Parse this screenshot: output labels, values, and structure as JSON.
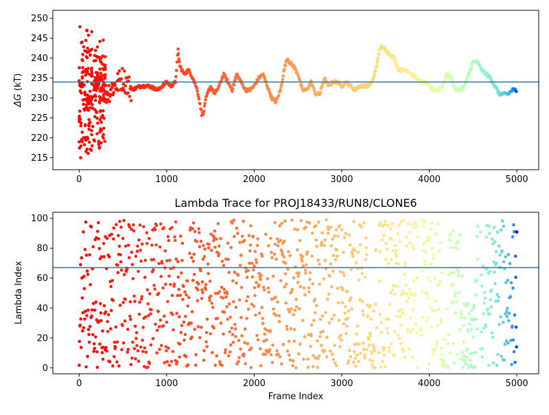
{
  "chart_data": [
    {
      "type": "scatter",
      "title": "",
      "xlabel": "",
      "ylabel": "ΔG (kT)",
      "ylabel_symbol": "ΔG",
      "ylabel_unit": " (kT)",
      "xlim": [
        -300,
        5250
      ],
      "ylim": [
        212,
        252
      ],
      "xticks": [
        0,
        1000,
        2000,
        3000,
        4000,
        5000
      ],
      "yticks": [
        215,
        220,
        225,
        230,
        235,
        240,
        245,
        250
      ],
      "hline": 234,
      "hline_color": "#1f77b4",
      "colormap": "rainbow (frame index high → violet, low → red)",
      "grid": false,
      "series": [
        {
          "points_per_segment": 40,
          "x": [
            0,
            50,
            100,
            150,
            200,
            250,
            300,
            400,
            500,
            600,
            700,
            800,
            900,
            1000,
            1050,
            1100,
            1130,
            1150,
            1200,
            1250,
            1300,
            1350,
            1400,
            1420,
            1450,
            1500,
            1550,
            1600,
            1650,
            1700,
            1750,
            1800,
            1850,
            1900,
            1950,
            2000,
            2050,
            2100,
            2150,
            2200,
            2250,
            2300,
            2350,
            2380,
            2400,
            2450,
            2500,
            2550,
            2600,
            2650,
            2700,
            2750,
            2800,
            2850,
            2900,
            2950,
            3000,
            3050,
            3100,
            3150,
            3200,
            3250,
            3300,
            3350,
            3400,
            3420,
            3450,
            3500,
            3550,
            3600,
            3650,
            3700,
            3750,
            3800,
            3850,
            3900,
            3950,
            4000,
            4050,
            4100,
            4150,
            4200,
            4250,
            4300,
            4350,
            4400,
            4450,
            4500,
            4550,
            4600,
            4650,
            4700,
            4750,
            4800,
            4850,
            4900,
            4950,
            5000
          ],
          "y": [
            232,
            230,
            228,
            230,
            232,
            233,
            231,
            233,
            235,
            232,
            233,
            233,
            232,
            234,
            233,
            234,
            242,
            238,
            236,
            237,
            235,
            232,
            226,
            226,
            230,
            233,
            231,
            233,
            236,
            234,
            232,
            236,
            234,
            232,
            232,
            233,
            235,
            236,
            233,
            230,
            229,
            232,
            238,
            240,
            239,
            238,
            236,
            232,
            232,
            234,
            231,
            231,
            235,
            233,
            234,
            234,
            233,
            234,
            233,
            232,
            233,
            233,
            233,
            234,
            238,
            241,
            243,
            242,
            241,
            240,
            237,
            237,
            237,
            236,
            235,
            234,
            234,
            233,
            232,
            232,
            233,
            236,
            235,
            232,
            232,
            233,
            236,
            239,
            239,
            237,
            236,
            235,
            233,
            231,
            231,
            231,
            232,
            232
          ]
        }
      ],
      "early_spread_y": [
        214,
        216,
        218,
        220,
        222,
        224,
        225,
        227,
        229,
        230,
        232,
        233,
        235,
        236,
        237,
        238,
        240,
        242,
        243,
        245,
        248
      ]
    },
    {
      "type": "scatter",
      "title": "Lambda Trace for PROJ18433/RUN8/CLONE6",
      "xlabel": "Frame Index",
      "ylabel": "Lambda Index",
      "xlim": [
        -300,
        5250
      ],
      "ylim": [
        -4,
        104
      ],
      "xticks": [
        0,
        1000,
        2000,
        3000,
        4000,
        5000
      ],
      "yticks": [
        0,
        20,
        40,
        60,
        80,
        100
      ],
      "hline": 67,
      "hline_color": "#1f77b4",
      "colormap": "rainbow (frame index high → violet, low → red)",
      "grid": false,
      "series": [
        {
          "x_range": [
            0,
            5000
          ],
          "x_step": 4,
          "y_range": [
            0,
            99
          ],
          "band_count": 40,
          "gaps": [
            [
              3400,
              3420
            ],
            [
              3870,
              3900
            ],
            [
              4180,
              4200
            ],
            [
              4560,
              4580
            ]
          ],
          "low_cluster_ranges": [
            [
              3300,
              3380
            ],
            [
              4380,
              4520
            ],
            [
              4150,
              4220
            ]
          ]
        }
      ]
    }
  ]
}
